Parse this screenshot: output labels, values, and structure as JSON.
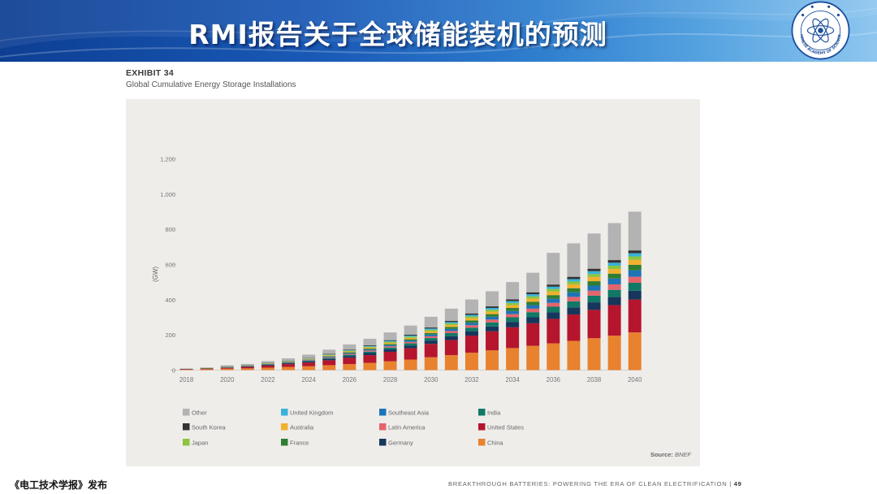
{
  "slide": {
    "title": "RMI报告关于全球储能装机的预测",
    "publisher": "《电工技术学报》发布",
    "colors": {
      "banner_dark": "#0d3e93",
      "banner_light": "#8ec6ef",
      "panel_bg": "#efedea"
    }
  },
  "logo": {
    "icon": "chinese-academy-of-sciences-emblem",
    "text": "CHINESE ACADEMY OF SCIENCES"
  },
  "exhibit": {
    "label": "EXHIBIT 34",
    "title": "Global Cumulative Energy Storage Installations"
  },
  "footer": {
    "text": "BREAKTHROUGH BATTERIES: POWERING THE ERA OF CLEAN ELECTRIFICATION",
    "separator": " | ",
    "page": "49"
  },
  "chart_data": {
    "type": "bar",
    "stacked": true,
    "ylabel": "(GW)",
    "ylim": [
      0,
      1200
    ],
    "yticks": [
      0,
      200,
      400,
      600,
      800,
      1000,
      1200
    ],
    "ytick_labels": [
      "0",
      "200",
      "400",
      "600",
      "800",
      "1,000",
      "1,200"
    ],
    "categories": [
      "2018",
      "2019",
      "2020",
      "2021",
      "2022",
      "2023",
      "2024",
      "2025",
      "2026",
      "2027",
      "2028",
      "2029",
      "2030",
      "2031",
      "2032",
      "2033",
      "2034",
      "2035",
      "2036",
      "2037",
      "2038",
      "2039",
      "2040"
    ],
    "xtick_labels": [
      "2018",
      "2020",
      "2022",
      "2024",
      "2026",
      "2028",
      "2030",
      "2032",
      "2034",
      "2036",
      "2038",
      "2040"
    ],
    "source_prefix": "Source: ",
    "source": "BNEF",
    "grid": false,
    "legend_position": "bottom",
    "series": [
      {
        "name": "China",
        "color": "#e8822e",
        "values": [
          3,
          5,
          8,
          10,
          14,
          18,
          22,
          28,
          34,
          41,
          50,
          60,
          73,
          85,
          99,
          112,
          125,
          138,
          152,
          166,
          181,
          196,
          214
        ]
      },
      {
        "name": "United States",
        "color": "#b5162d",
        "values": [
          2,
          3,
          5,
          8,
          12,
          16,
          21,
          28,
          36,
          44,
          54,
          64,
          76,
          86,
          97,
          108,
          118,
          128,
          139,
          150,
          161,
          173,
          187
        ]
      },
      {
        "name": "Germany",
        "color": "#16365c",
        "values": [
          1,
          1,
          2,
          3,
          4,
          5,
          6,
          8,
          10,
          12,
          14,
          16,
          19,
          22,
          25,
          28,
          31,
          34,
          37,
          40,
          43,
          46,
          50
        ]
      },
      {
        "name": "India",
        "color": "#117866",
        "values": [
          0,
          1,
          1,
          1,
          2,
          3,
          4,
          5,
          7,
          8,
          10,
          12,
          14,
          17,
          20,
          23,
          26,
          29,
          32,
          35,
          38,
          41,
          45
        ]
      },
      {
        "name": "Latin America",
        "color": "#e4646c",
        "values": [
          0,
          0,
          1,
          1,
          2,
          2,
          3,
          4,
          5,
          6,
          7,
          8,
          10,
          12,
          14,
          16,
          18,
          20,
          22,
          25,
          28,
          31,
          34
        ]
      },
      {
        "name": "Southeast Asia",
        "color": "#1e73b7",
        "values": [
          0,
          0,
          1,
          1,
          1,
          2,
          3,
          4,
          5,
          6,
          7,
          8,
          10,
          12,
          14,
          16,
          18,
          20,
          23,
          26,
          29,
          33,
          37
        ]
      },
      {
        "name": "France",
        "color": "#2f7d32",
        "values": [
          0,
          0,
          0,
          1,
          1,
          1,
          2,
          3,
          4,
          5,
          6,
          7,
          9,
          11,
          13,
          15,
          17,
          19,
          21,
          23,
          25,
          28,
          31
        ]
      },
      {
        "name": "Australia",
        "color": "#f2b02f",
        "values": [
          0,
          1,
          1,
          1,
          2,
          2,
          3,
          4,
          5,
          6,
          7,
          8,
          10,
          11,
          13,
          14,
          16,
          18,
          20,
          22,
          24,
          26,
          28
        ]
      },
      {
        "name": "Japan",
        "color": "#8cc43f",
        "values": [
          0,
          0,
          1,
          1,
          1,
          2,
          2,
          3,
          4,
          5,
          6,
          7,
          8,
          9,
          10,
          11,
          12,
          13,
          15,
          16,
          17,
          19,
          20
        ]
      },
      {
        "name": "United Kingdom",
        "color": "#38b2da",
        "values": [
          0,
          0,
          1,
          1,
          1,
          1,
          2,
          2,
          3,
          4,
          5,
          6,
          7,
          8,
          9,
          10,
          11,
          12,
          13,
          14,
          16,
          17,
          18
        ]
      },
      {
        "name": "South Korea",
        "color": "#333333",
        "values": [
          1,
          1,
          1,
          1,
          1,
          2,
          2,
          3,
          3,
          4,
          4,
          5,
          6,
          7,
          8,
          9,
          10,
          11,
          12,
          13,
          14,
          15,
          16
        ]
      },
      {
        "name": "Other",
        "color": "#b3b3b3",
        "values": [
          2,
          3,
          5,
          6,
          10,
          13,
          18,
          24,
          30,
          37,
          44,
          52,
          61,
          69,
          79,
          86,
          98,
          111,
          180,
          190,
          200,
          210,
          220
        ]
      }
    ],
    "legend_order": [
      "Other",
      "United Kingdom",
      "Southeast Asia",
      "India",
      "South Korea",
      "Australia",
      "Latin America",
      "United States",
      "Japan",
      "France",
      "Germany",
      "China"
    ]
  }
}
